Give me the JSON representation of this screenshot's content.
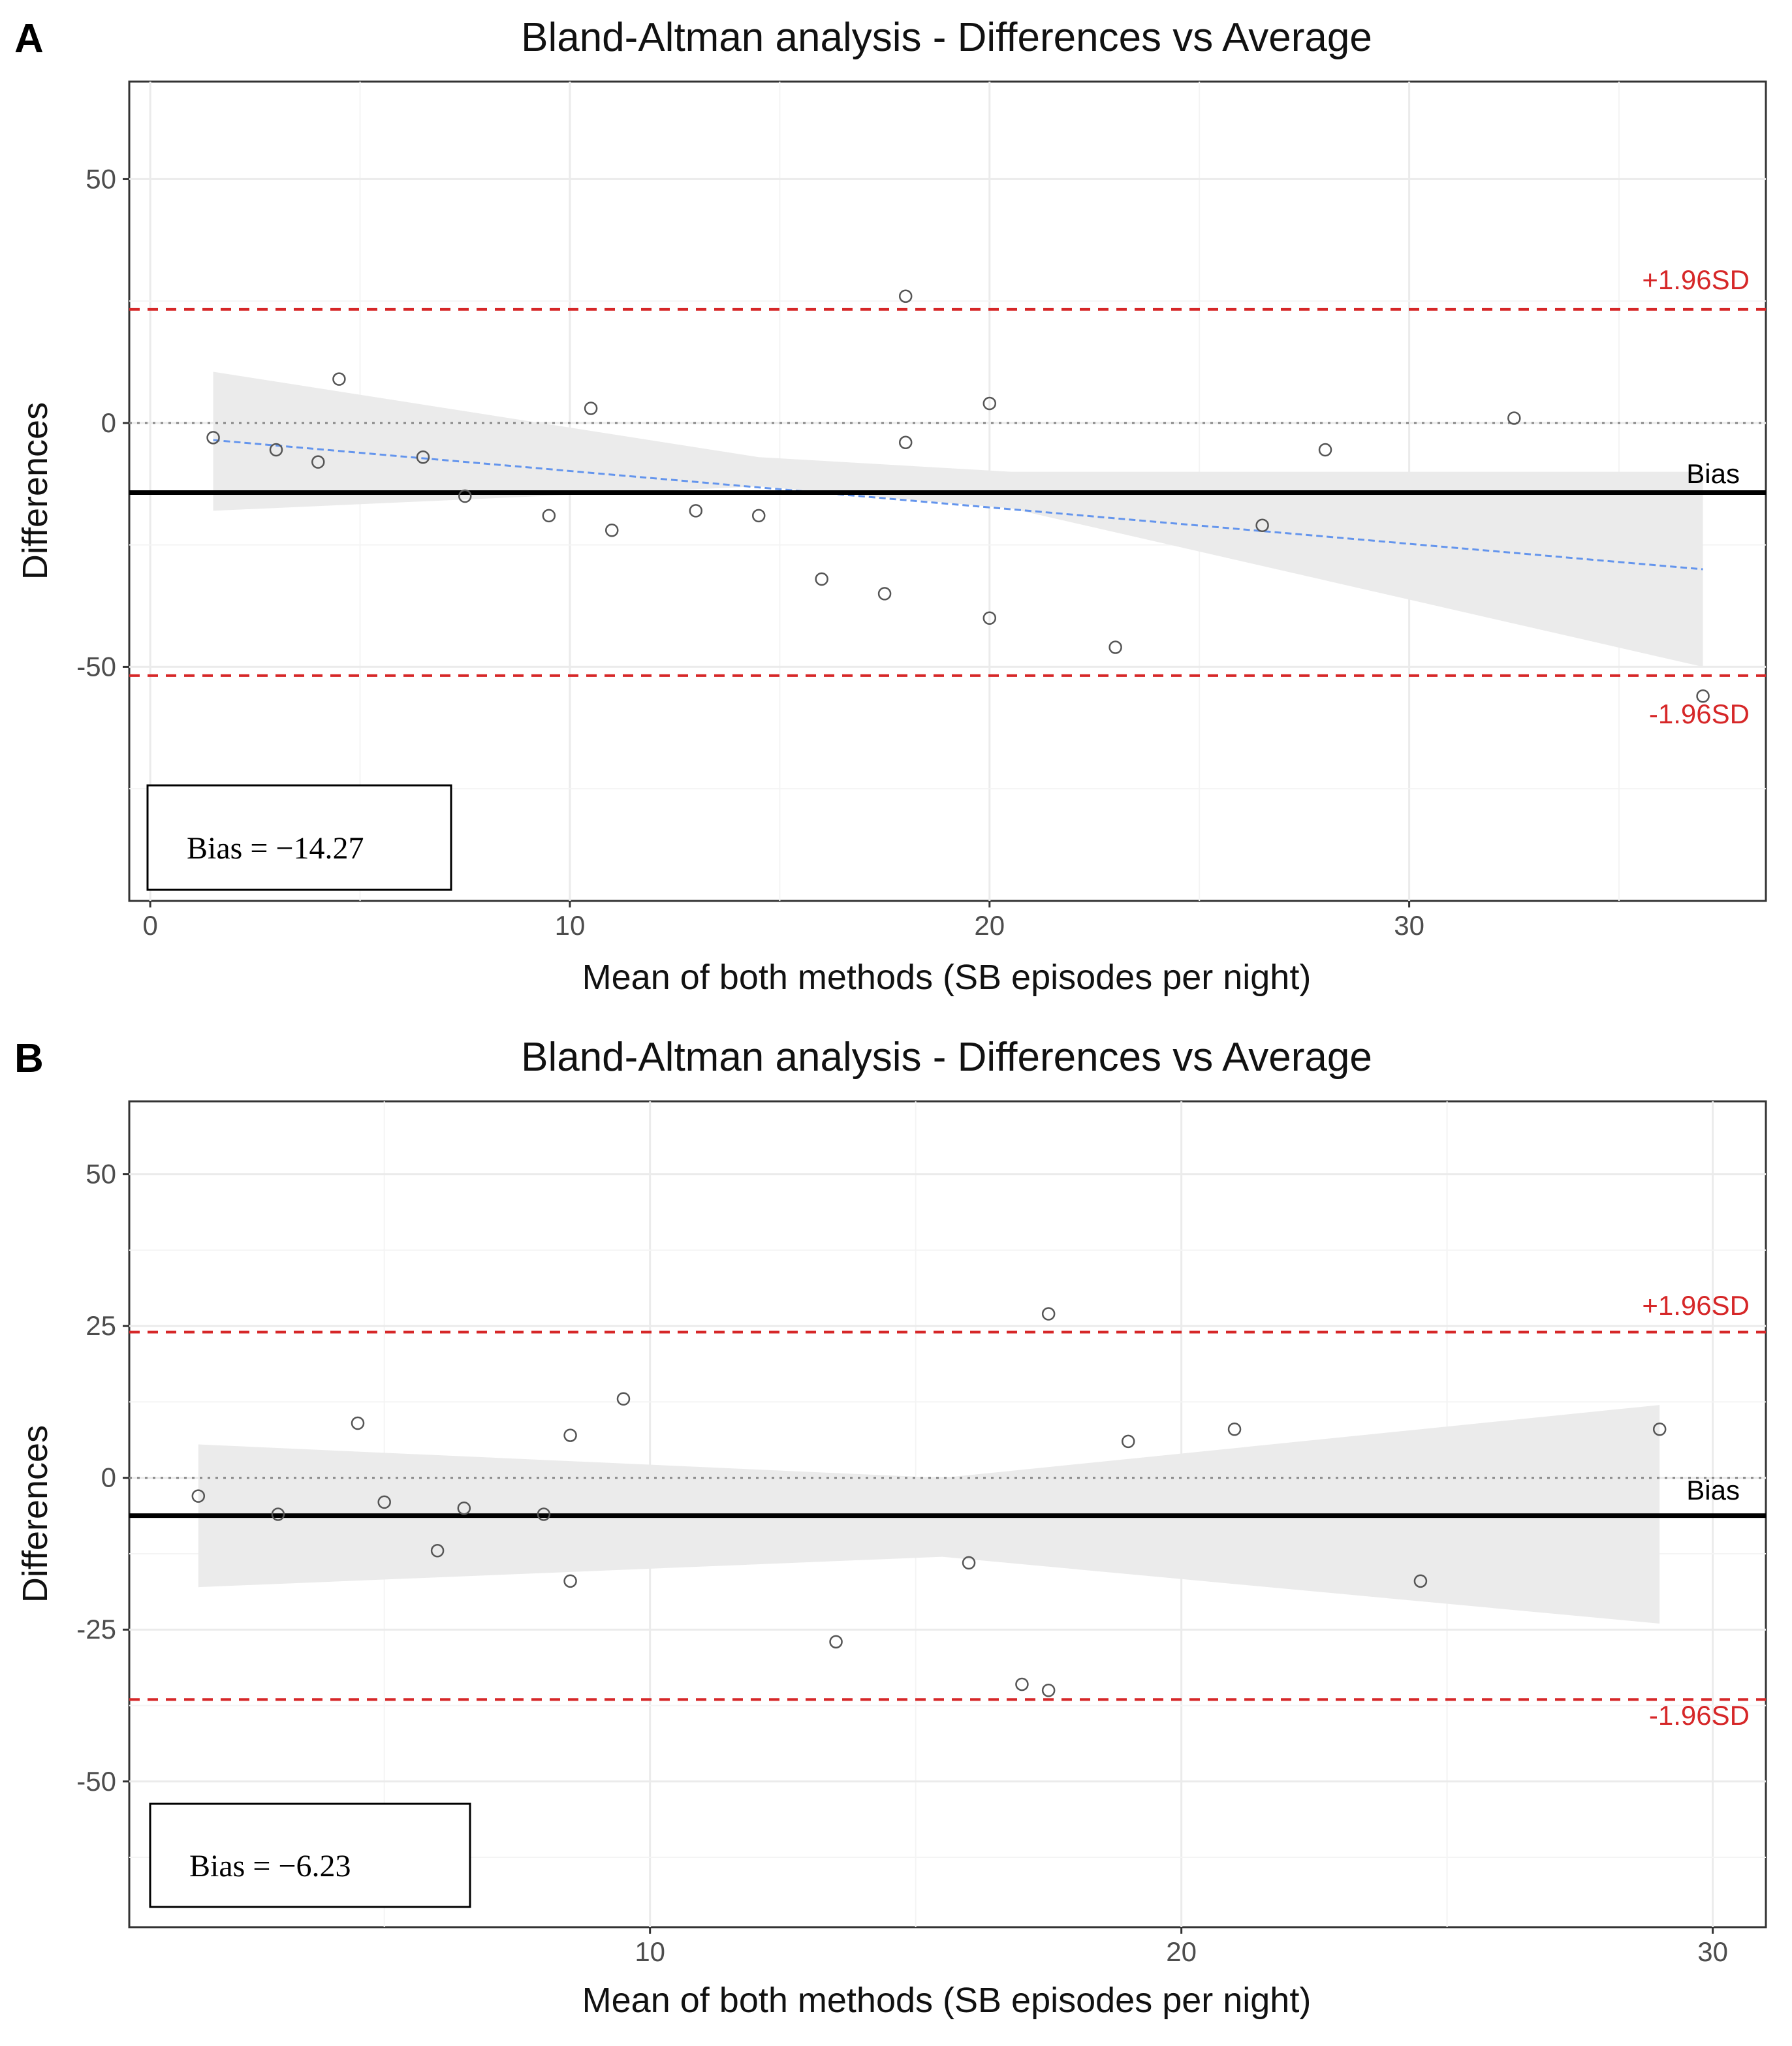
{
  "chart_data": [
    {
      "type": "scatter",
      "panel_letter": "A",
      "title": "Bland-Altman analysis - Differences vs Average",
      "xlabel": "Mean of both methods (SB episodes per night)",
      "ylabel": "Differences",
      "xlim": [
        -0.5,
        38.5
      ],
      "ylim": [
        -98,
        70
      ],
      "xticks": [
        0,
        10,
        20,
        30
      ],
      "xtick_labels": [
        "0",
        "10",
        "20",
        "30"
      ],
      "yticks": [
        50,
        0,
        -50
      ],
      "ytick_labels": [
        "50",
        "0",
        "-50"
      ],
      "points": [
        {
          "x": 1.5,
          "y": -3
        },
        {
          "x": 3.0,
          "y": -5.5
        },
        {
          "x": 4.0,
          "y": -8
        },
        {
          "x": 4.5,
          "y": 9
        },
        {
          "x": 6.5,
          "y": -7
        },
        {
          "x": 7.5,
          "y": -15
        },
        {
          "x": 9.5,
          "y": -19
        },
        {
          "x": 10.5,
          "y": 3
        },
        {
          "x": 11.0,
          "y": -22
        },
        {
          "x": 13.0,
          "y": -18
        },
        {
          "x": 14.5,
          "y": -19
        },
        {
          "x": 16.0,
          "y": -32
        },
        {
          "x": 17.5,
          "y": -35
        },
        {
          "x": 18.0,
          "y": 26
        },
        {
          "x": 18.0,
          "y": -4
        },
        {
          "x": 20.0,
          "y": 4
        },
        {
          "x": 20.0,
          "y": -40
        },
        {
          "x": 23.0,
          "y": -46
        },
        {
          "x": 26.5,
          "y": -21
        },
        {
          "x": 28.0,
          "y": -5.5
        },
        {
          "x": 32.5,
          "y": 1
        },
        {
          "x": 37.0,
          "y": -56
        }
      ],
      "bias": -14.27,
      "upper_loa": 23.3,
      "lower_loa": -51.8,
      "zero_line": 0,
      "regression": {
        "x": [
          1.5,
          37.0
        ],
        "y": [
          -3.5,
          -30
        ]
      },
      "confidence_band": {
        "x": [
          1.5,
          14.5,
          20.5,
          37.0
        ],
        "upper": [
          10.5,
          -7,
          -10,
          -10
        ],
        "lower": [
          -18,
          -13,
          -17.5,
          -50
        ]
      },
      "upper_label": "+1.96SD",
      "lower_label": "-1.96SD",
      "bias_label": "Bias",
      "bias_box_text": "Bias = −14.27",
      "colors": {
        "points": "#555555",
        "loa": "#d62728",
        "bias": "#000000",
        "regression": "#6495ed",
        "band": "#ebebeb"
      }
    },
    {
      "type": "scatter",
      "panel_letter": "B",
      "title": "Bland-Altman analysis - Differences vs Average",
      "xlabel": "Mean of both methods (SB episodes per night)",
      "ylabel": "Differences",
      "xlim": [
        0.2,
        31.0
      ],
      "ylim": [
        -74,
        62
      ],
      "xticks": [
        10,
        20,
        30
      ],
      "xtick_labels": [
        "10",
        "20",
        "30"
      ],
      "yticks": [
        50,
        25,
        0,
        -25,
        -50
      ],
      "ytick_labels": [
        "50",
        "25",
        "0",
        "-25",
        "-50"
      ],
      "points": [
        {
          "x": 1.5,
          "y": -3
        },
        {
          "x": 3.0,
          "y": -6
        },
        {
          "x": 4.5,
          "y": 9
        },
        {
          "x": 5.0,
          "y": -4
        },
        {
          "x": 6.0,
          "y": -12
        },
        {
          "x": 6.5,
          "y": -5
        },
        {
          "x": 8.0,
          "y": -6
        },
        {
          "x": 8.5,
          "y": 7
        },
        {
          "x": 8.5,
          "y": -17
        },
        {
          "x": 9.5,
          "y": 13
        },
        {
          "x": 13.5,
          "y": -27
        },
        {
          "x": 16.0,
          "y": -14
        },
        {
          "x": 17.0,
          "y": -34
        },
        {
          "x": 17.5,
          "y": 27
        },
        {
          "x": 17.5,
          "y": -35
        },
        {
          "x": 19.0,
          "y": 6
        },
        {
          "x": 21.0,
          "y": 8
        },
        {
          "x": 24.5,
          "y": -17
        },
        {
          "x": 29.0,
          "y": 8
        }
      ],
      "bias": -6.23,
      "upper_loa": 24,
      "lower_loa": -36.5,
      "zero_line": 0,
      "regression": {
        "x": [
          1.5,
          29.0
        ],
        "y": [
          -6.3,
          -6.1
        ]
      },
      "confidence_band": {
        "x": [
          1.5,
          15.5,
          29.0
        ],
        "upper": [
          5.5,
          0,
          12
        ],
        "lower": [
          -18,
          -13,
          -24
        ]
      },
      "upper_label": "+1.96SD",
      "lower_label": "-1.96SD",
      "bias_label": "Bias",
      "bias_box_text": "Bias = −6.23",
      "colors": {
        "points": "#555555",
        "loa": "#d62728",
        "bias": "#000000",
        "regression": "#6495ed",
        "band": "#ebebeb"
      }
    }
  ]
}
